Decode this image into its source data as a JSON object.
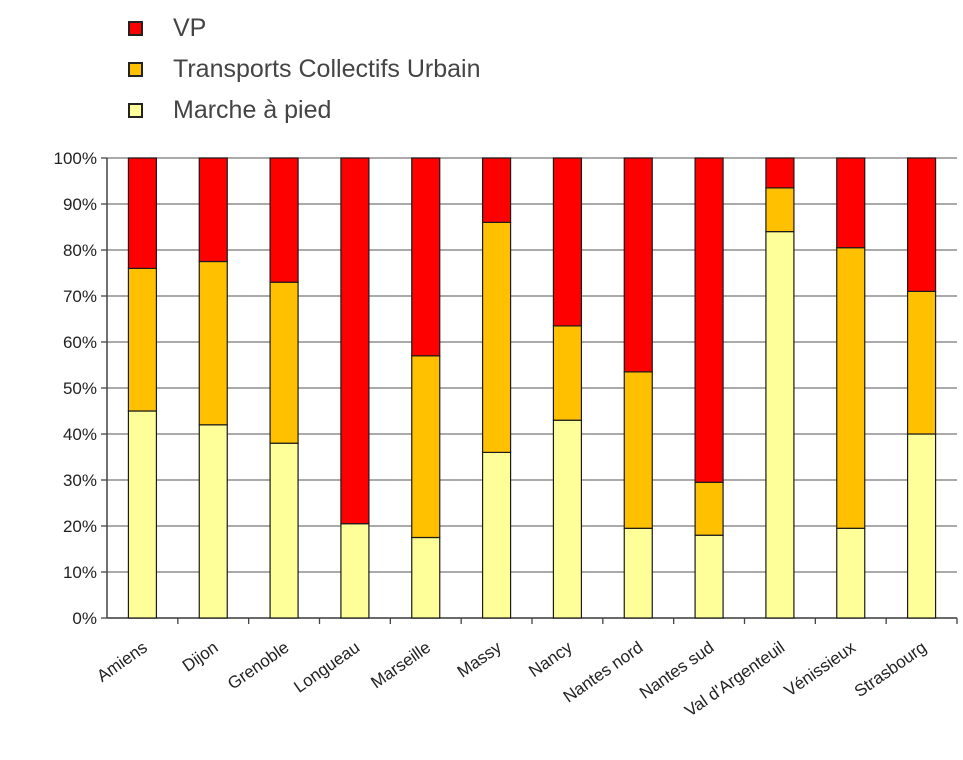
{
  "chart_data": {
    "type": "bar",
    "stacked": true,
    "percent": true,
    "categories": [
      "Amiens",
      "Dijon",
      "Grenoble",
      "Longueau",
      "Marseille",
      "Massy",
      "Nancy",
      "Nantes nord",
      "Nantes sud",
      "Val d'Argenteuil",
      "Vénissieux",
      "Strasbourg"
    ],
    "series": [
      {
        "name": "Marche à pied",
        "color": "#ffff99",
        "values": [
          45,
          42,
          38,
          20.5,
          17.5,
          36,
          43,
          19.5,
          18,
          84,
          19.5,
          40
        ]
      },
      {
        "name": "Transports Collectifs Urbain",
        "color": "#ffc000",
        "values": [
          31,
          35.5,
          35,
          0,
          39.5,
          50,
          20.5,
          34,
          11.5,
          9.5,
          61,
          31
        ]
      },
      {
        "name": "VP",
        "color": "#ff0000",
        "values": [
          24,
          22.5,
          27,
          79.5,
          43,
          14,
          36.5,
          46.5,
          70.5,
          6.5,
          19.5,
          29
        ]
      }
    ],
    "legend_order": [
      "VP",
      "Transports Collectifs Urbain",
      "Marche à pied"
    ],
    "yticks": [
      "0%",
      "10%",
      "20%",
      "30%",
      "40%",
      "50%",
      "60%",
      "70%",
      "80%",
      "90%",
      "100%"
    ],
    "ylim": [
      0,
      100
    ],
    "legend_position": "top-left",
    "grid": true
  }
}
